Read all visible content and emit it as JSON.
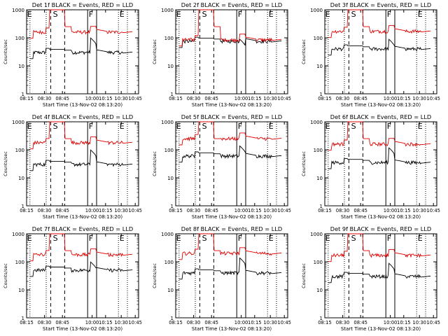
{
  "figure": {
    "xlabel": "Start Time (13-Nov-02 08:13:20)",
    "ylabel": "Counts/sec",
    "colors": {
      "events": "#000000",
      "lld": "#e00000",
      "axis": "#000000"
    }
  },
  "chart_data": [
    {
      "type": "line",
      "title": "Det 1f BLACK = Events, RED = LLD",
      "xlabel": "Start Time (13-Nov-02 08:13:20)",
      "ylabel": "Counts/sec",
      "x_ticks": [
        "08:15",
        "08:30",
        "08:45",
        "10:00",
        "10:15",
        "10:30",
        "10:45"
      ],
      "y_ticks": [
        "1",
        "10",
        "100",
        "1000"
      ],
      "ylim": [
        1,
        1000
      ],
      "yscale": "log",
      "markers": [
        "E",
        "S",
        "F",
        "E"
      ],
      "series": [
        {
          "name": "Events",
          "color": "#000000",
          "level": 30,
          "spike": 100
        },
        {
          "name": "LLD",
          "color": "#e00000",
          "level": 160,
          "spike": 1000
        }
      ]
    },
    {
      "type": "line",
      "title": "Det 2f BLACK = Events, RED = LLD",
      "xlabel": "Start Time (13-Nov-02 08:13:20)",
      "ylabel": "Counts/sec",
      "x_ticks": [
        "08:15",
        "08:30",
        "08:45",
        "10:00",
        "10:15",
        "10:30",
        "10:45"
      ],
      "y_ticks": [
        "1",
        "10",
        "100",
        "1000"
      ],
      "ylim": [
        1,
        1000
      ],
      "yscale": "log",
      "markers": [
        "E",
        "S",
        "F",
        "E"
      ],
      "series": [
        {
          "name": "Events",
          "color": "#000000",
          "level": 75,
          "spike": 90
        },
        {
          "name": "LLD",
          "color": "#e00000",
          "level": 85,
          "spike": 1000
        }
      ]
    },
    {
      "type": "line",
      "title": "Det 3f BLACK = Events, RED = LLD",
      "xlabel": "Start Time (13-Nov-02 08:13:20)",
      "ylabel": "Counts/sec",
      "x_ticks": [
        "08:15",
        "08:30",
        "08:45",
        "10:00",
        "10:15",
        "10:30",
        "10:45"
      ],
      "y_ticks": [
        "1",
        "10",
        "100",
        "1000"
      ],
      "ylim": [
        1,
        1000
      ],
      "yscale": "log",
      "markers": [
        "E",
        "S",
        "F",
        "E"
      ],
      "series": [
        {
          "name": "Events",
          "color": "#000000",
          "level": 40,
          "spike": 90
        },
        {
          "name": "LLD",
          "color": "#e00000",
          "level": 170,
          "spike": 1000
        }
      ]
    },
    {
      "type": "line",
      "title": "Det 4f BLACK = Events, RED = LLD",
      "xlabel": "Start Time (13-Nov-02 08:13:20)",
      "ylabel": "Counts/sec",
      "x_ticks": [
        "08:15",
        "08:30",
        "08:45",
        "10:00",
        "10:15",
        "10:30",
        "10:45"
      ],
      "y_ticks": [
        "1",
        "10",
        "100",
        "1000"
      ],
      "ylim": [
        1,
        1000
      ],
      "yscale": "log",
      "markers": [
        "E",
        "S",
        "F",
        "E"
      ],
      "series": [
        {
          "name": "Events",
          "color": "#000000",
          "level": 30,
          "spike": 100
        },
        {
          "name": "LLD",
          "color": "#e00000",
          "level": 180,
          "spike": 1000
        }
      ]
    },
    {
      "type": "line",
      "title": "Det 5f BLACK = Events, RED = LLD",
      "xlabel": "Start Time (13-Nov-02 08:13:20)",
      "ylabel": "Counts/sec",
      "x_ticks": [
        "08:15",
        "08:30",
        "08:45",
        "10:00",
        "10:15",
        "10:30",
        "10:45"
      ],
      "y_ticks": [
        "1",
        "10",
        "100",
        "1000"
      ],
      "ylim": [
        1,
        1000
      ],
      "yscale": "log",
      "markers": [
        "E",
        "S",
        "F",
        "E"
      ],
      "series": [
        {
          "name": "Events",
          "color": "#000000",
          "level": 60,
          "spike": 140
        },
        {
          "name": "LLD",
          "color": "#e00000",
          "level": 250,
          "spike": 1000
        }
      ]
    },
    {
      "type": "line",
      "title": "Det 6f BLACK = Events, RED = LLD",
      "xlabel": "Start Time (13-Nov-02 08:13:20)",
      "ylabel": "Counts/sec",
      "x_ticks": [
        "08:15",
        "08:30",
        "08:45",
        "10:00",
        "10:15",
        "10:30",
        "10:45"
      ],
      "y_ticks": [
        "1",
        "10",
        "100",
        "1000"
      ],
      "ylim": [
        1,
        1000
      ],
      "yscale": "log",
      "markers": [
        "E",
        "S",
        "F",
        "E"
      ],
      "series": [
        {
          "name": "Events",
          "color": "#000000",
          "level": 35,
          "spike": 120
        },
        {
          "name": "LLD",
          "color": "#e00000",
          "level": 160,
          "spike": 1000
        }
      ]
    },
    {
      "type": "line",
      "title": "Det 7f BLACK = Events, RED = LLD",
      "xlabel": "Start Time (13-Nov-02 08:13:20)",
      "ylabel": "Counts/sec",
      "x_ticks": [
        "08:15",
        "08:30",
        "08:45",
        "10:00",
        "10:15",
        "10:30",
        "10:45"
      ],
      "y_ticks": [
        "1",
        "10",
        "100",
        "1000"
      ],
      "ylim": [
        1,
        1000
      ],
      "yscale": "log",
      "markers": [
        "E",
        "S",
        "F",
        "E"
      ],
      "series": [
        {
          "name": "Events",
          "color": "#000000",
          "level": 50,
          "spike": 100
        },
        {
          "name": "LLD",
          "color": "#e00000",
          "level": 180,
          "spike": 1000
        }
      ]
    },
    {
      "type": "line",
      "title": "Det 8f BLACK = Events, RED = LLD",
      "xlabel": "Start Time (13-Nov-02 08:13:20)",
      "ylabel": "Counts/sec",
      "x_ticks": [
        "08:15",
        "08:30",
        "08:45",
        "10:00",
        "10:15",
        "10:30",
        "10:45"
      ],
      "y_ticks": [
        "1",
        "10",
        "100",
        "1000"
      ],
      "ylim": [
        1,
        1000
      ],
      "yscale": "log",
      "markers": [
        "E",
        "S",
        "F",
        "E"
      ],
      "series": [
        {
          "name": "Events",
          "color": "#000000",
          "level": 40,
          "spike": 140
        },
        {
          "name": "LLD",
          "color": "#e00000",
          "level": 200,
          "spike": 1000
        }
      ]
    },
    {
      "type": "line",
      "title": "Det 9f BLACK = Events, RED = LLD",
      "xlabel": "Start Time (13-Nov-02 08:13:20)",
      "ylabel": "Counts/sec",
      "x_ticks": [
        "08:15",
        "08:30",
        "08:45",
        "10:00",
        "10:15",
        "10:30",
        "10:45"
      ],
      "y_ticks": [
        "1",
        "10",
        "100",
        "1000"
      ],
      "ylim": [
        1,
        1000
      ],
      "yscale": "log",
      "markers": [
        "E",
        "S",
        "F",
        "E"
      ],
      "series": [
        {
          "name": "Events",
          "color": "#000000",
          "level": 30,
          "spike": 90
        },
        {
          "name": "LLD",
          "color": "#e00000",
          "level": 170,
          "spike": 1000
        }
      ]
    }
  ]
}
